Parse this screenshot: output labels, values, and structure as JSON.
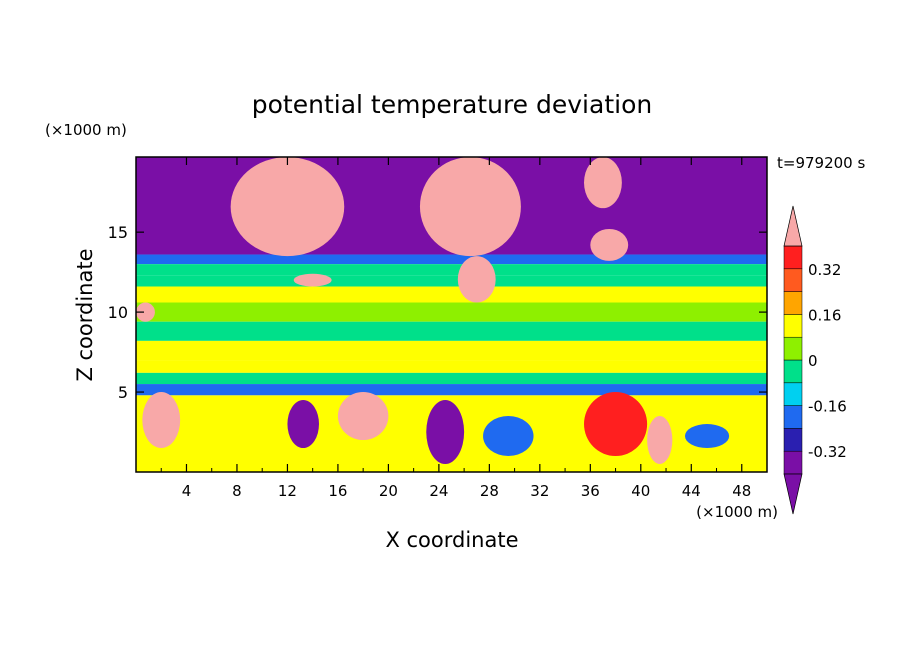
{
  "chart_data": {
    "type": "heatmap",
    "title": "potential temperature deviation",
    "xlabel": "X coordinate",
    "ylabel": "Z coordinate",
    "x_unit": "(×1000 m)",
    "y_unit": "(×1000 m)",
    "time_label": "t=979200 s",
    "xlim": [
      0,
      50
    ],
    "ylim": [
      0,
      19.7
    ],
    "x_ticks": [
      "4",
      "8",
      "12",
      "16",
      "20",
      "24",
      "28",
      "32",
      "36",
      "40",
      "44",
      "48"
    ],
    "y_ticks": [
      "5",
      "10",
      "15"
    ],
    "colorbar": {
      "levels": [
        -0.4,
        -0.32,
        -0.24,
        -0.16,
        -0.08,
        0,
        0.08,
        0.16,
        0.24,
        0.32,
        0.4
      ],
      "tick_labels": [
        "-0.32",
        "-0.16",
        "0",
        "0.16",
        "0.32"
      ],
      "tick_values": [
        -0.32,
        -0.16,
        0,
        0.16,
        0.32
      ],
      "colors": [
        "#7a0fa6",
        "#2a1fb0",
        "#1f6af0",
        "#00d0f0",
        "#00e08a",
        "#8ef000",
        "#ffff00",
        "#ffa500",
        "#ff5a1f",
        "#ff1f1f",
        "#f8a8a8"
      ],
      "extend": "both"
    },
    "bands": [
      {
        "z": [
          13.6,
          19.7
        ],
        "value": -0.45
      },
      {
        "z": [
          13.0,
          13.6
        ],
        "value": -0.28
      },
      {
        "z": [
          12.3,
          13.0
        ],
        "value": -0.15
      },
      {
        "z": [
          11.6,
          12.3
        ],
        "value": -0.1
      },
      {
        "z": [
          10.6,
          11.6
        ],
        "value": 0.03
      },
      {
        "z": [
          9.4,
          10.6
        ],
        "value": -0.08
      },
      {
        "z": [
          8.2,
          9.4
        ],
        "value": -0.1
      },
      {
        "z": [
          7.0,
          8.2
        ],
        "value": 0.05
      },
      {
        "z": [
          6.2,
          7.0
        ],
        "value": 0.03
      },
      {
        "z": [
          5.5,
          6.2
        ],
        "value": -0.1
      },
      {
        "z": [
          4.8,
          5.5
        ],
        "value": -0.25
      }
    ],
    "cells": [
      {
        "x": [
          7.5,
          16.5
        ],
        "z": [
          13.5,
          19.7
        ],
        "value": 0.45
      },
      {
        "x": [
          22.5,
          30.5
        ],
        "z": [
          13.5,
          19.7
        ],
        "value": 0.45
      },
      {
        "x": [
          25.5,
          28.5
        ],
        "z": [
          10.6,
          13.5
        ],
        "value": 0.45
      },
      {
        "x": [
          35.5,
          38.5
        ],
        "z": [
          16.5,
          19.7
        ],
        "value": 0.45
      },
      {
        "x": [
          36.0,
          39.0
        ],
        "z": [
          13.2,
          15.2
        ],
        "value": 0.45
      },
      {
        "x": [
          12.5,
          15.5
        ],
        "z": [
          11.6,
          12.4
        ],
        "value": 0.45
      },
      {
        "x": [
          0.0,
          1.5
        ],
        "z": [
          9.4,
          10.6
        ],
        "value": 0.45
      },
      {
        "x": [
          0.5,
          3.5
        ],
        "z": [
          1.5,
          5.0
        ],
        "value": 0.45
      },
      {
        "x": [
          16.0,
          20.0
        ],
        "z": [
          2.0,
          5.0
        ],
        "value": 0.45
      },
      {
        "x": [
          35.5,
          40.5
        ],
        "z": [
          1.0,
          5.0
        ],
        "value": 0.3
      },
      {
        "x": [
          40.5,
          42.5
        ],
        "z": [
          0.5,
          3.5
        ],
        "value": 0.45
      },
      {
        "x": [
          23.0,
          26.0
        ],
        "z": [
          0.5,
          4.5
        ],
        "value": -0.45
      },
      {
        "x": [
          12.0,
          14.5
        ],
        "z": [
          1.5,
          4.5
        ],
        "value": -0.45
      },
      {
        "x": [
          27.5,
          31.5
        ],
        "z": [
          1.0,
          3.5
        ],
        "value": -0.25
      },
      {
        "x": [
          43.5,
          47.0
        ],
        "z": [
          1.5,
          3.0
        ],
        "value": -0.3
      }
    ]
  }
}
